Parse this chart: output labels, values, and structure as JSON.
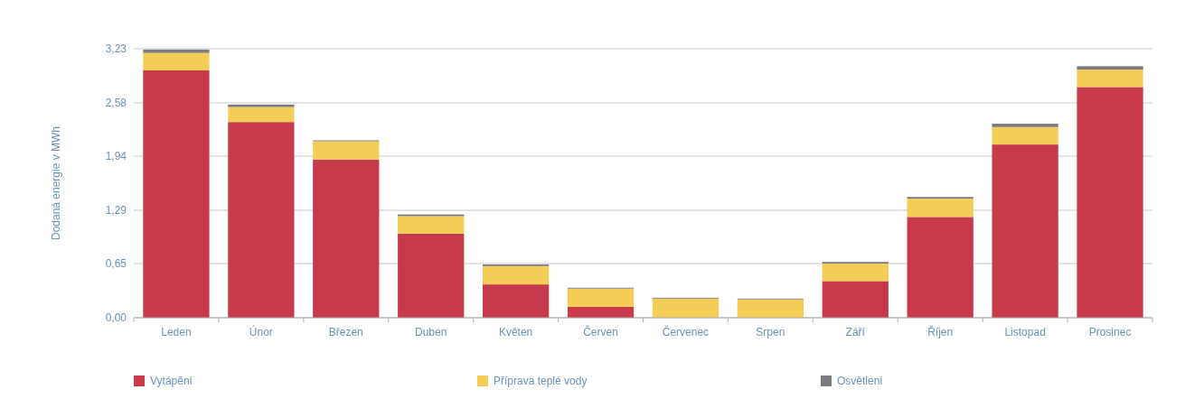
{
  "chart_data": {
    "type": "bar",
    "stacked": true,
    "ylabel": "Dodaná energie v MWh",
    "categories": [
      "Leden",
      "Únor",
      "Březen",
      "Duben",
      "Květen",
      "Červen",
      "Červenec",
      "Srpen",
      "Září",
      "Říjen",
      "Listopad",
      "Prosinec"
    ],
    "series": [
      {
        "name": "Vytápění",
        "color": "#c73a4c",
        "values": [
          2.97,
          2.35,
          1.9,
          1.01,
          0.4,
          0.13,
          0,
          0,
          0.44,
          1.21,
          2.08,
          2.77
        ]
      },
      {
        "name": "Příprava teplé vody",
        "color": "#f3cd55",
        "values": [
          0.21,
          0.18,
          0.22,
          0.21,
          0.22,
          0.22,
          0.23,
          0.22,
          0.21,
          0.22,
          0.21,
          0.21
        ]
      },
      {
        "name": "Osvětlení",
        "color": "#7c7c80",
        "values": [
          0.04,
          0.03,
          0.01,
          0.02,
          0.02,
          0.01,
          0.01,
          0.01,
          0.02,
          0.02,
          0.04,
          0.04
        ]
      }
    ],
    "ylim": [
      0,
      3.23
    ],
    "yticks": [
      {
        "value": 0,
        "label": "0,00"
      },
      {
        "value": 0.65,
        "label": "0,65"
      },
      {
        "value": 1.29,
        "label": "1,29"
      },
      {
        "value": 1.94,
        "label": "1,94"
      },
      {
        "value": 2.58,
        "label": "2,58"
      },
      {
        "value": 3.23,
        "label": "3,23"
      }
    ],
    "grid": "y",
    "legend": "bottom"
  }
}
